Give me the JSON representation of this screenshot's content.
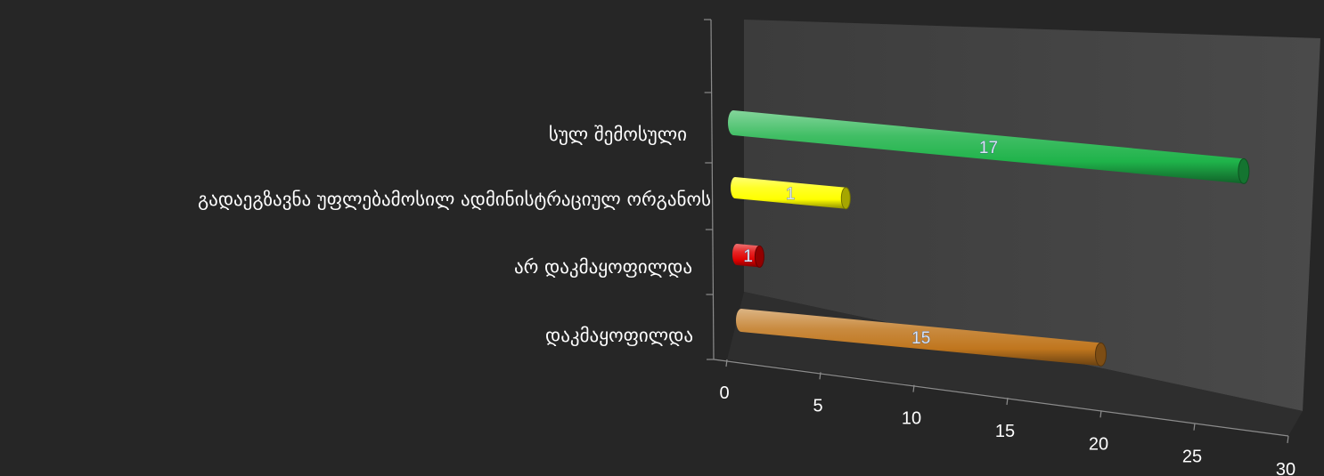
{
  "chart_data": {
    "type": "bar",
    "orientation": "horizontal",
    "style": "3d-cylinder",
    "categories": [
      "სულ შემოსული",
      "გადაეგზავნა უფლებამოსილ ადმინისტრაციულ ორგანოს",
      "არ დაკმაყოფილდა",
      "დაკმაყოფილდა"
    ],
    "values": [
      17,
      1,
      1,
      15
    ],
    "colors": [
      "#1fb34a",
      "#ffff00",
      "#e00000",
      "#c0761e"
    ],
    "xticks": [
      0,
      5,
      10,
      15,
      20,
      25,
      30
    ],
    "xlim": [
      0,
      30
    ],
    "title": "",
    "xlabel": "",
    "ylabel": "",
    "legend": false,
    "grid": false
  }
}
